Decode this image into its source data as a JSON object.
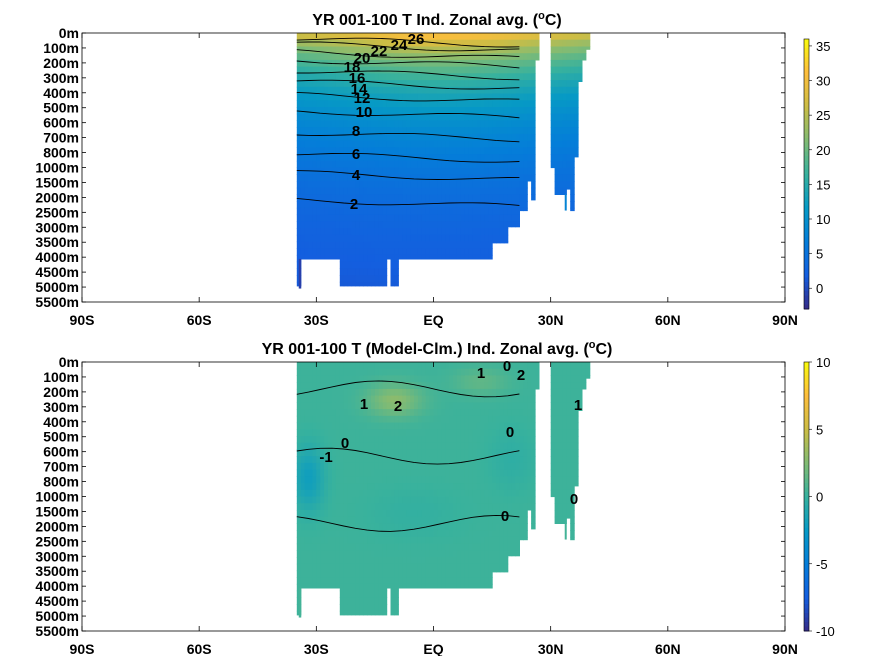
{
  "chart_data": [
    {
      "type": "heatmap",
      "title": "YR 001-100 T Ind. Zonal avg. (",
      "title_sup": "o",
      "title_end": "C)",
      "x_ticks": [
        "90S",
        "60S",
        "30S",
        "EQ",
        "30N",
        "60N",
        "90N"
      ],
      "x_values": [
        -90,
        -60,
        -30,
        0,
        30,
        60,
        90
      ],
      "y_ticks": [
        "0m",
        "100m",
        "200m",
        "300m",
        "400m",
        "500m",
        "600m",
        "700m",
        "800m",
        "1000m",
        "1500m",
        "2000m",
        "2500m",
        "3000m",
        "3500m",
        "4000m",
        "4500m",
        "5000m",
        "5500m"
      ],
      "colorbar_ticks": [
        "35",
        "30",
        "25",
        "20",
        "15",
        "10",
        "5",
        "0"
      ],
      "colorbar_values": [
        35,
        30,
        25,
        20,
        15,
        10,
        5,
        0
      ],
      "clim": [
        -3,
        36
      ],
      "contour_labels": [
        {
          "text": "26",
          "lat": -4,
          "depth": "0m-100m"
        },
        {
          "text": "24",
          "lat": -8,
          "depth": "100m"
        },
        {
          "text": "22",
          "lat": -12,
          "depth": "100m"
        },
        {
          "text": "20",
          "lat": -16,
          "depth": "100m"
        },
        {
          "text": "18",
          "lat": -18,
          "depth": "200m"
        },
        {
          "text": "16",
          "lat": -18,
          "depth": "300m"
        },
        {
          "text": "14",
          "lat": -17,
          "depth": "400m"
        },
        {
          "text": "12",
          "lat": -17,
          "depth": "400m-500m"
        },
        {
          "text": "10",
          "lat": -16,
          "depth": "500m-600m"
        },
        {
          "text": "8",
          "lat": -18,
          "depth": "700m"
        },
        {
          "text": "6",
          "lat": -18,
          "depth": "800m-1000m"
        },
        {
          "text": "4",
          "lat": -18,
          "depth": "1000m-1500m"
        },
        {
          "text": "2",
          "lat": -18,
          "depth": "2000m"
        }
      ]
    },
    {
      "type": "heatmap",
      "title": "YR 001-100 T (Model-Clm.) Ind. Zonal avg. (",
      "title_sup": "o",
      "title_end": "C)",
      "x_ticks": [
        "90S",
        "60S",
        "30S",
        "EQ",
        "30N",
        "60N",
        "90N"
      ],
      "x_values": [
        -90,
        -60,
        -30,
        0,
        30,
        60,
        90
      ],
      "y_ticks": [
        "0m",
        "100m",
        "200m",
        "300m",
        "400m",
        "500m",
        "600m",
        "700m",
        "800m",
        "1000m",
        "1500m",
        "2000m",
        "2500m",
        "3000m",
        "3500m",
        "4000m",
        "4500m",
        "5000m",
        "5500m"
      ],
      "colorbar_ticks": [
        "10",
        "5",
        "0",
        "-5",
        "-10"
      ],
      "colorbar_values": [
        10,
        5,
        0,
        -5,
        -10
      ],
      "clim": [
        -10,
        10
      ],
      "contour_labels": [
        {
          "text": "0",
          "lat": 17,
          "depth": "0m-100m"
        },
        {
          "text": "1",
          "lat": 11,
          "depth": "100m"
        },
        {
          "text": "2",
          "lat": 21,
          "depth": "100m"
        },
        {
          "text": "2",
          "lat": -10,
          "depth": "200m-300m"
        },
        {
          "text": "1",
          "lat": -18,
          "depth": "200m-300m"
        },
        {
          "text": "1",
          "lat": 35,
          "depth": "200m-300m"
        },
        {
          "text": "0",
          "lat": 18,
          "depth": "500m"
        },
        {
          "text": "0",
          "lat": -24,
          "depth": "500m-600m"
        },
        {
          "text": "-1",
          "lat": -28,
          "depth": "600m-700m"
        },
        {
          "text": "0",
          "lat": 33,
          "depth": "1000m"
        },
        {
          "text": "0",
          "lat": 17,
          "depth": "1500m"
        }
      ]
    }
  ]
}
